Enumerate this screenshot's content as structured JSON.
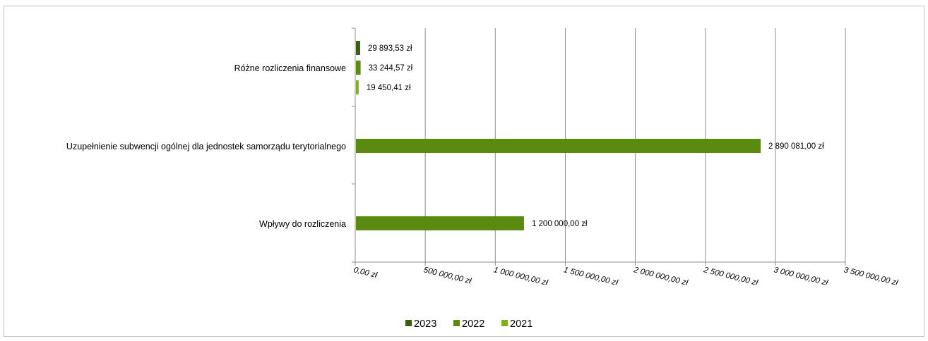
{
  "chart_data": {
    "type": "bar",
    "orientation": "horizontal",
    "categories": [
      "Różne rozliczenia finansowe",
      "Uzupełnienie subwencji ogólnej dla jednostek samorządu terytorialnego",
      "Wpływy do rozliczenia"
    ],
    "series": [
      {
        "name": "2023",
        "color": "#3d5c0f",
        "values": [
          29893.53,
          null,
          null
        ],
        "labels": [
          "29 893,53 zł",
          "",
          ""
        ]
      },
      {
        "name": "2022",
        "color": "#5a8a0f",
        "values": [
          33244.57,
          2890081.0,
          1200000.0
        ],
        "labels": [
          "33 244,57 zł",
          "2 890 081,00 zł",
          "1 200 000,00 zł"
        ]
      },
      {
        "name": "2021",
        "color": "#7fae1f",
        "values": [
          19450.41,
          null,
          null
        ],
        "labels": [
          "19 450,41 zł",
          "",
          ""
        ]
      }
    ],
    "xlim": [
      0,
      3500000
    ],
    "x_ticks": [
      0,
      500000,
      1000000,
      1500000,
      2000000,
      2500000,
      3000000,
      3500000
    ],
    "x_tick_labels": [
      "0,00 zł",
      "500 000,00 zł",
      "1 000 000,00 zł",
      "1 500 000,00 zł",
      "2 000 000,00 zł",
      "2 500 000,00 zł",
      "3 000 000,00 zł",
      "3 500 000,00 zł"
    ],
    "grid": "vertical",
    "legend": {
      "placement": "bottom",
      "entries": [
        "2023",
        "2022",
        "2021"
      ]
    },
    "title": "",
    "xlabel": "",
    "ylabel": ""
  }
}
